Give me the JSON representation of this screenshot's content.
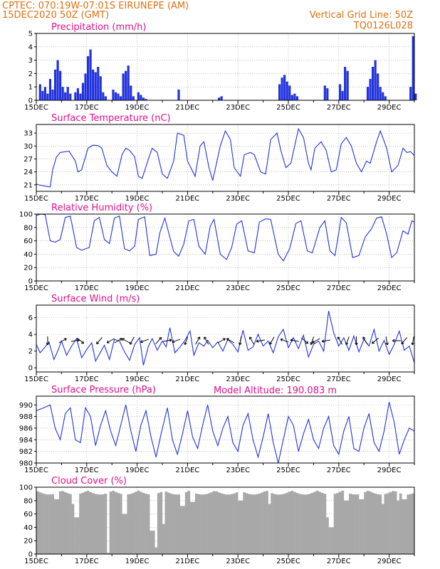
{
  "header": {
    "line1": "CPTEC:   070:19W-07:01S   EIRUNEPE (AM)",
    "line2": "15DEC2020 50Z (GMT)",
    "right1": "Vertical Grid Line: 50Z",
    "right2": "TQ0126L028"
  },
  "colors": {
    "header": "#e07010",
    "title": "#e0108a",
    "line": "#2233dd",
    "cloud": "#a8a8a8"
  },
  "x_labels": [
    "15DEC",
    "17DEC",
    "19DEC",
    "21DEC",
    "23DEC",
    "25DEC",
    "27DEC",
    "29DEC"
  ],
  "altitude_label": "Model Altitude: 190.083 m",
  "chart_data": [
    {
      "type": "bar",
      "title": "Precipitation (mm/h)",
      "x_range": [
        0,
        15
      ],
      "ylim": [
        0,
        5
      ],
      "yticks": [
        0,
        1,
        2,
        3,
        4,
        5
      ],
      "grid": true,
      "x": [
        0.15,
        0.25,
        0.35,
        0.45,
        0.55,
        0.65,
        0.75,
        0.85,
        0.95,
        1.05,
        1.15,
        1.25,
        1.35,
        1.55,
        1.65,
        1.75,
        1.85,
        1.95,
        2.05,
        2.15,
        2.25,
        2.35,
        2.45,
        2.55,
        2.65,
        2.75,
        3.05,
        3.15,
        3.25,
        3.35,
        3.45,
        3.55,
        3.65,
        3.75,
        3.85,
        4.05,
        4.15,
        4.25,
        4.35,
        5.65,
        7.25,
        7.35,
        9.65,
        9.75,
        9.85,
        9.95,
        10.05,
        10.15,
        10.25,
        10.35,
        11.45,
        11.55,
        12.05,
        12.15,
        12.25,
        12.35,
        13.15,
        13.25,
        13.35,
        13.45,
        13.55,
        13.65,
        13.75,
        13.85,
        14.85,
        14.95,
        15.05
      ],
      "values": [
        1.2,
        0.7,
        1.0,
        0.5,
        1.6,
        0.8,
        2.3,
        3.0,
        2.2,
        1.0,
        0.6,
        1.0,
        0.5,
        0.6,
        0.9,
        0.5,
        1.3,
        2.0,
        3.3,
        3.8,
        2.3,
        2.1,
        2.5,
        1.8,
        0.6,
        0.3,
        0.8,
        0.6,
        0.5,
        0.3,
        2.0,
        2.2,
        2.6,
        1.1,
        0.3,
        0.6,
        0.4,
        0.2,
        0.1,
        0.8,
        0.2,
        0.3,
        1.2,
        1.7,
        1.9,
        1.4,
        1.1,
        0.4,
        0.5,
        0.3,
        1.1,
        0.9,
        1.2,
        0.7,
        2.5,
        2.2,
        1.0,
        1.6,
        2.5,
        3.0,
        2.0,
        1.0,
        0.6,
        0.3,
        1.0,
        4.8,
        0.5
      ]
    },
    {
      "type": "line",
      "title": "Surface Temperature (nC)",
      "x_range": [
        0,
        15
      ],
      "ylim": [
        19.5,
        35
      ],
      "yticks": [
        21,
        24,
        27,
        30,
        33
      ],
      "grid": true,
      "x": [
        0,
        0.1,
        0.25,
        0.45,
        0.55,
        0.65,
        0.8,
        0.95,
        1.05,
        1.3,
        1.55,
        1.65,
        1.8,
        2.05,
        2.25,
        2.45,
        2.6,
        2.8,
        3.0,
        3.2,
        3.4,
        3.55,
        3.7,
        3.9,
        4.05,
        4.2,
        4.45,
        4.6,
        4.8,
        5.0,
        5.2,
        5.45,
        5.6,
        5.85,
        6.0,
        6.3,
        6.5,
        6.65,
        6.85,
        7.0,
        7.3,
        7.5,
        7.7,
        7.85,
        8.1,
        8.25,
        8.5,
        8.65,
        8.9,
        9.1,
        9.3,
        9.55,
        9.7,
        9.9,
        10.1,
        10.4,
        10.6,
        10.8,
        10.9,
        11.05,
        11.3,
        11.5,
        11.7,
        11.9,
        12.1,
        12.3,
        12.5,
        12.7,
        12.9,
        13.1,
        13.25,
        13.5,
        13.65,
        13.9,
        14.1,
        14.35,
        14.55,
        14.7,
        14.85,
        15.0
      ],
      "series": [
        {
          "values": [
            21.2,
            21.0,
            20.8,
            20.6,
            20.5,
            24.5,
            27.5,
            28.5,
            28.6,
            28.8,
            26.5,
            24.0,
            24.5,
            29.5,
            30.2,
            30.1,
            29.5,
            25.5,
            24.0,
            23.0,
            28.0,
            29.5,
            29.0,
            27.5,
            23.0,
            22.5,
            27.0,
            29.5,
            28.5,
            23.5,
            22.5,
            26.5,
            33.0,
            32.5,
            26.5,
            23.0,
            30.0,
            31.0,
            25.0,
            22.0,
            30.0,
            33.5,
            31.5,
            25.0,
            23.0,
            28.0,
            28.5,
            28.0,
            24.0,
            23.5,
            31.5,
            33.0,
            29.0,
            25.0,
            26.0,
            34.0,
            32.0,
            26.0,
            24.5,
            29.5,
            31.0,
            29.0,
            24.0,
            24.5,
            30.5,
            32.0,
            30.0,
            26.0,
            24.0,
            26.5,
            26.0,
            31.0,
            33.5,
            29.5,
            24.0,
            25.5,
            29.5,
            28.5,
            28.7,
            27.8
          ]
        }
      ]
    },
    {
      "type": "line",
      "title": "Relative Humidity (%)",
      "x_range": [
        0,
        15
      ],
      "ylim": [
        0,
        100
      ],
      "yticks": [
        0,
        20,
        40,
        60,
        80,
        100
      ],
      "grid": true,
      "x": [
        0,
        0.1,
        0.2,
        0.35,
        0.55,
        0.75,
        0.95,
        1.15,
        1.35,
        1.6,
        1.8,
        2.1,
        2.3,
        2.5,
        2.7,
        2.9,
        3.1,
        3.3,
        3.5,
        3.7,
        3.9,
        4.05,
        4.3,
        4.5,
        4.75,
        4.9,
        5.1,
        5.45,
        5.65,
        5.85,
        6.05,
        6.25,
        6.45,
        6.7,
        6.9,
        7.05,
        7.3,
        7.55,
        7.75,
        7.95,
        8.15,
        8.4,
        8.65,
        8.85,
        9.1,
        9.3,
        9.6,
        9.8,
        10.05,
        10.3,
        10.5,
        10.75,
        10.95,
        11.25,
        11.45,
        11.65,
        11.85,
        12.1,
        12.3,
        12.55,
        12.8,
        13.05,
        13.3,
        13.5,
        13.7,
        13.9,
        14.1,
        14.3,
        14.55,
        14.75,
        14.9,
        15.0
      ],
      "series": [
        {
          "values": [
            98,
            99,
            100,
            99,
            60,
            58,
            62,
            95,
            97,
            50,
            46,
            50,
            90,
            95,
            62,
            56,
            94,
            97,
            48,
            45,
            52,
            92,
            96,
            38,
            40,
            72,
            94,
            44,
            37,
            55,
            90,
            92,
            52,
            40,
            82,
            92,
            40,
            32,
            50,
            85,
            90,
            45,
            42,
            88,
            93,
            92,
            40,
            30,
            48,
            86,
            90,
            45,
            42,
            80,
            90,
            45,
            38,
            95,
            87,
            35,
            38,
            66,
            78,
            94,
            96,
            70,
            35,
            42,
            75,
            70,
            90,
            88
          ]
        }
      ]
    },
    {
      "type": "line",
      "title": "Surface Wind (m/s)",
      "x_range": [
        0,
        15
      ],
      "ylim": [
        -0.5,
        7.5
      ],
      "yticks": [
        0,
        2,
        4,
        6
      ],
      "grid": true,
      "x": [
        0,
        0.15,
        0.35,
        0.5,
        0.7,
        0.85,
        1.0,
        1.2,
        1.4,
        1.6,
        1.8,
        2.0,
        2.2,
        2.35,
        2.55,
        2.7,
        2.9,
        3.1,
        3.3,
        3.5,
        3.7,
        3.9,
        4.1,
        4.25,
        4.45,
        4.6,
        4.8,
        5.0,
        5.15,
        5.3,
        5.5,
        5.7,
        5.9,
        6.1,
        6.25,
        6.45,
        6.65,
        6.8,
        7.0,
        7.2,
        7.4,
        7.6,
        7.8,
        8.0,
        8.2,
        8.4,
        8.6,
        8.8,
        9.0,
        9.2,
        9.4,
        9.6,
        9.8,
        10.0,
        10.2,
        10.4,
        10.6,
        10.8,
        11.0,
        11.2,
        11.4,
        11.6,
        11.8,
        12.0,
        12.2,
        12.4,
        12.6,
        12.8,
        13.0,
        13.2,
        13.4,
        13.6,
        13.8,
        14.0,
        14.2,
        14.4,
        14.6,
        14.8,
        15.0
      ],
      "series": [
        {
          "values": [
            2.8,
            1.8,
            2.5,
            3.1,
            1.0,
            2.0,
            3.2,
            1.5,
            2.6,
            3.5,
            1.2,
            2.2,
            3.0,
            0.8,
            1.9,
            2.7,
            1.0,
            3.4,
            3.2,
            1.9,
            0.9,
            2.8,
            3.6,
            0.3,
            2.6,
            3.5,
            2.1,
            3.2,
            2.5,
            4.8,
            1.8,
            2.5,
            3.3,
            4.4,
            1.5,
            3.0,
            2.6,
            3.3,
            2.4,
            3.1,
            2.0,
            3.4,
            2.8,
            1.9,
            4.5,
            2.1,
            2.5,
            4.0,
            2.6,
            3.2,
            1.8,
            3.7,
            4.6,
            2.4,
            3.6,
            2.3,
            3.9,
            1.3,
            2.8,
            3.2,
            2.0,
            6.8,
            4.2,
            2.6,
            3.6,
            2.1,
            3.8,
            1.9,
            3.4,
            2.6,
            4.6,
            2.0,
            3.3,
            1.6,
            2.8,
            4.4,
            2.1,
            2.6,
            0.6
          ]
        }
      ],
      "arrow_x": [
        0.45,
        1.05,
        1.55,
        1.75,
        2.5,
        2.95,
        3.25,
        3.55,
        3.8,
        4.3,
        4.85,
        5.2,
        5.55,
        5.95,
        6.4,
        6.75,
        7.35,
        7.7,
        8.1,
        8.55,
        8.9,
        9.35,
        9.85,
        10.25,
        10.65,
        10.95,
        11.1,
        11.5,
        12.05,
        12.35,
        12.7,
        13.05,
        13.45,
        13.9,
        14.3,
        14.6,
        14.95
      ],
      "arrow_deg": [
        180,
        60,
        80,
        130,
        220,
        240,
        60,
        300,
        210,
        250,
        40,
        80,
        250,
        200,
        30,
        330,
        60,
        300,
        190,
        330,
        260,
        210,
        290,
        280,
        130,
        200,
        240,
        260,
        330,
        200,
        180,
        330,
        230,
        170,
        270,
        220,
        190
      ]
    },
    {
      "type": "line",
      "title": "Surface Pressure (hPa)",
      "x_range": [
        0,
        15
      ],
      "ylim": [
        980,
        991.5
      ],
      "yticks": [
        980,
        982,
        984,
        986,
        988,
        990
      ],
      "grid": true,
      "x": [
        0,
        0.3,
        0.55,
        0.75,
        0.95,
        1.15,
        1.35,
        1.55,
        1.75,
        1.95,
        2.15,
        2.35,
        2.55,
        2.75,
        2.95,
        3.15,
        3.35,
        3.55,
        3.75,
        3.95,
        4.15,
        4.35,
        4.55,
        4.75,
        4.95,
        5.2,
        5.4,
        5.6,
        5.8,
        6.0,
        6.2,
        6.4,
        6.6,
        6.8,
        7.0,
        7.2,
        7.4,
        7.6,
        7.8,
        8.0,
        8.2,
        8.4,
        8.6,
        8.8,
        9.0,
        9.2,
        9.4,
        9.6,
        9.8,
        10.0,
        10.2,
        10.4,
        10.6,
        10.8,
        11.0,
        11.2,
        11.4,
        11.6,
        11.8,
        12.0,
        12.2,
        12.4,
        12.6,
        12.8,
        13.0,
        13.2,
        13.4,
        13.6,
        13.8,
        14.0,
        14.2,
        14.4,
        14.6,
        14.8,
        15.0
      ],
      "series": [
        {
          "values": [
            989.0,
            989.5,
            990.0,
            986.0,
            984.0,
            988.5,
            989.5,
            984.0,
            983.5,
            989.5,
            988.0,
            983.0,
            986.5,
            989.0,
            985.5,
            983.0,
            986.5,
            990.0,
            985.5,
            982.0,
            986.5,
            989.0,
            984.5,
            981.0,
            985.0,
            989.5,
            984.0,
            981.5,
            985.0,
            989.0,
            984.5,
            982.5,
            986.5,
            990.0,
            985.5,
            983.0,
            986.0,
            988.0,
            983.5,
            982.0,
            986.5,
            988.5,
            984.0,
            981.0,
            984.5,
            988.5,
            983.5,
            980.0,
            984.0,
            988.0,
            986.5,
            982.0,
            985.0,
            987.5,
            984.0,
            982.5,
            986.0,
            988.0,
            983.0,
            981.5,
            985.5,
            988.0,
            982.5,
            982.0,
            986.0,
            988.5,
            983.5,
            982.0,
            985.5,
            990.5,
            987.0,
            981.5,
            984.0,
            986.0,
            985.5
          ]
        }
      ]
    },
    {
      "type": "bar",
      "title": "Cloud Cover (%)",
      "x_range": [
        0,
        15
      ],
      "ylim": [
        0,
        100
      ],
      "yticks": [
        0,
        20,
        40,
        60,
        80,
        100
      ],
      "grid": true,
      "base": 95,
      "dip_x": [
        0.8,
        1.45,
        1.6,
        2.85,
        3.5,
        4.6,
        4.75,
        5.05,
        5.8,
        6.2,
        8.1,
        9.25,
        11.6,
        11.7,
        12.3,
        12.9,
        13.75,
        14.35,
        14.6
      ],
      "dip_values": [
        82,
        75,
        55,
        2,
        60,
        35,
        10,
        45,
        72,
        78,
        80,
        75,
        55,
        40,
        80,
        82,
        75,
        80,
        82
      ]
    }
  ]
}
